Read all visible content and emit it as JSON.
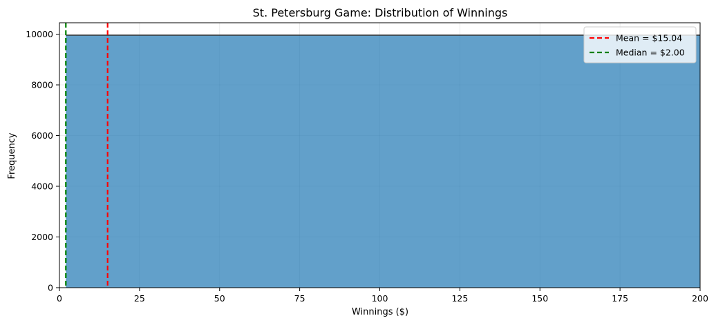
{
  "chart_data": {
    "type": "histogram",
    "title": "St. Petersburg Game: Distribution of Winnings",
    "xlabel": "Winnings ($)",
    "ylabel": "Frequency",
    "xlim": [
      0,
      200
    ],
    "ylim": [
      0,
      10450
    ],
    "x_ticks": [
      0,
      25,
      50,
      75,
      100,
      125,
      150,
      175,
      200
    ],
    "y_ticks": [
      0,
      2000,
      4000,
      6000,
      8000,
      10000
    ],
    "grid": true,
    "bins": [
      {
        "x_start": 2,
        "x_end": 200,
        "count": 9960
      }
    ],
    "bar_color": "#1f77b4",
    "bar_alpha": 0.7,
    "reference_lines": [
      {
        "name": "mean",
        "label": "Mean = $15.04",
        "x": 15.04,
        "color": "#ff0000",
        "style": "dashed"
      },
      {
        "name": "median",
        "label": "Median = $2.00",
        "x": 2.0,
        "color": "#008000",
        "style": "dashed"
      }
    ],
    "legend_position": "top-right"
  }
}
